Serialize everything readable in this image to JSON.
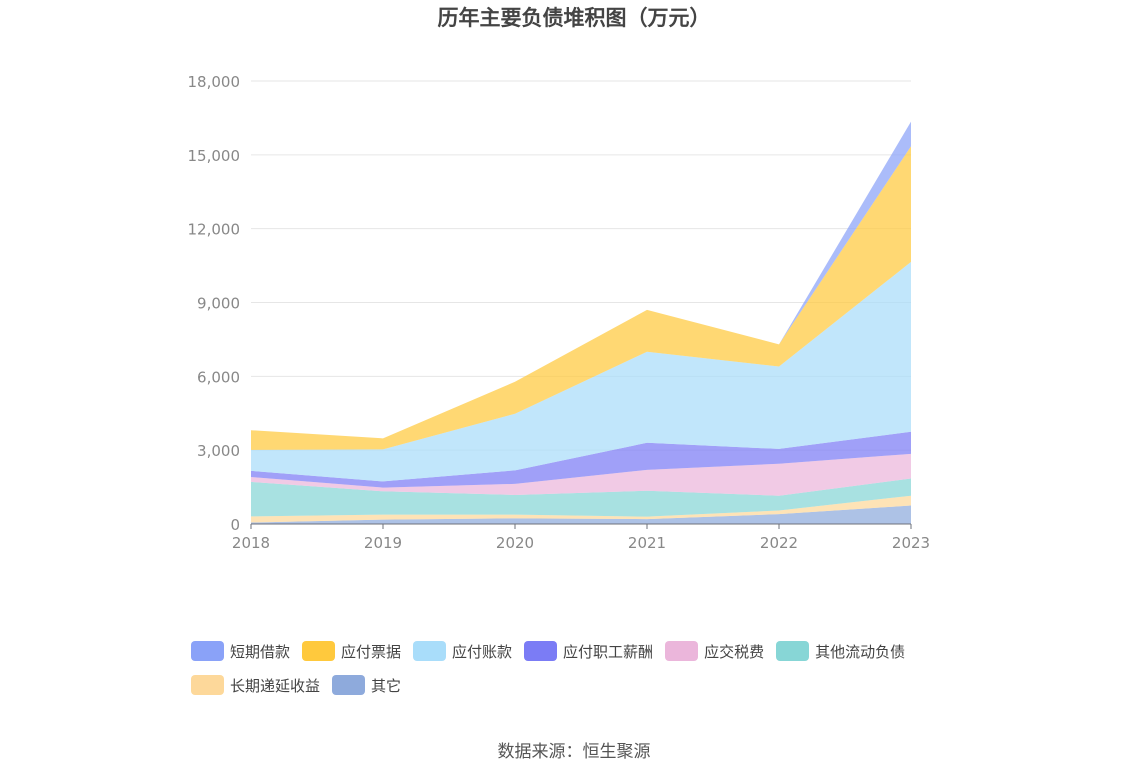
{
  "chart_data": {
    "type": "area",
    "title": "历年主要负债堆积图（万元）",
    "categories": [
      "2018",
      "2019",
      "2020",
      "2021",
      "2022",
      "2023"
    ],
    "ylim": [
      0,
      18000
    ],
    "yticks": [
      "0",
      "3,000",
      "6,000",
      "9,000",
      "12,000",
      "15,000",
      "18,000"
    ],
    "ytick_values": [
      0,
      3000,
      6000,
      9000,
      12000,
      15000,
      18000
    ],
    "grid": true,
    "legend_position": "bottom",
    "series": [
      {
        "name": "其它",
        "color": "#8eaadc",
        "values": [
          60,
          180,
          230,
          200,
          400,
          750
        ]
      },
      {
        "name": "长期递延收益",
        "color": "#fdd89a",
        "values": [
          250,
          200,
          150,
          100,
          150,
          400
        ]
      },
      {
        "name": "其他流动负债",
        "color": "#87d6d6",
        "values": [
          1400,
          950,
          800,
          1050,
          600,
          700
        ]
      },
      {
        "name": "应交税费",
        "color": "#ebb6db",
        "values": [
          200,
          150,
          450,
          850,
          1300,
          1000
        ]
      },
      {
        "name": "应付职工薪酬",
        "color": "#7b7cf5",
        "values": [
          250,
          250,
          550,
          1100,
          600,
          900
        ]
      },
      {
        "name": "应付账款",
        "color": "#a9ddfa",
        "values": [
          850,
          1300,
          2300,
          3700,
          3350,
          6900
        ]
      },
      {
        "name": "应付票据",
        "color": "#ffc93d",
        "values": [
          800,
          450,
          1300,
          1700,
          900,
          4700
        ]
      },
      {
        "name": "短期借款",
        "color": "#8aa2f8",
        "values": [
          0,
          0,
          0,
          0,
          0,
          1000
        ]
      }
    ]
  },
  "legend": [
    {
      "label": "短期借款",
      "color": "#8aa2f8"
    },
    {
      "label": "应付票据",
      "color": "#ffc93d"
    },
    {
      "label": "应付账款",
      "color": "#a9ddfa"
    },
    {
      "label": "应付职工薪酬",
      "color": "#7b7cf5"
    },
    {
      "label": "应交税费",
      "color": "#ebb6db"
    },
    {
      "label": "其他流动负债",
      "color": "#87d6d6"
    },
    {
      "label": "长期递延收益",
      "color": "#fdd89a"
    },
    {
      "label": "其它",
      "color": "#8eaadc"
    }
  ],
  "source": "数据来源：恒生聚源"
}
